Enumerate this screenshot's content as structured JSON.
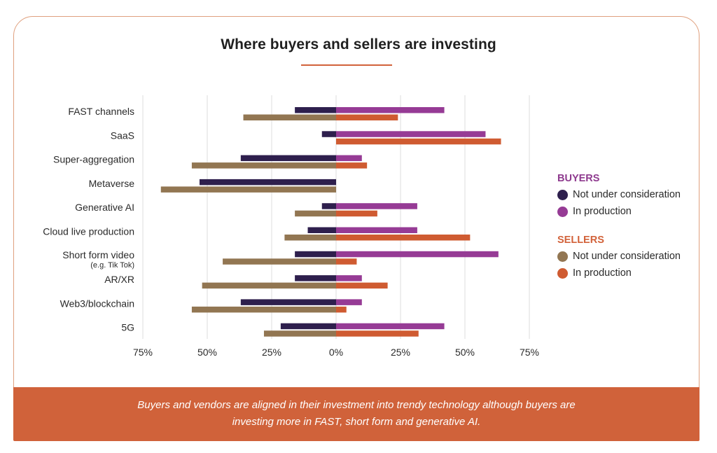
{
  "title": "Where buyers and sellers are investing",
  "legend": {
    "buyers_heading": "BUYERS",
    "sellers_heading": "SELLERS",
    "buyers_not": "Not under consideration",
    "buyers_in": "In production",
    "sellers_not": "Not under consideration",
    "sellers_in": "In production"
  },
  "footer": {
    "line1": "Buyers and vendors are aligned in their investment into trendy technology although buyers are",
    "line2": "investing more in FAST, short form and generative AI."
  },
  "colors": {
    "buyers_not": "#2e1f4d",
    "buyers_in": "#963b95",
    "sellers_not": "#927652",
    "sellers_in": "#cf5b31",
    "grid": "#dcdcdc",
    "accent": "#d2623a"
  },
  "chart_data": {
    "type": "bar",
    "orientation": "horizontal-diverging",
    "title": "Where buyers and sellers are investing",
    "categories": [
      "FAST channels",
      "SaaS",
      "Super-aggregation",
      "Metaverse",
      "Generative AI",
      "Cloud live production",
      "Short form video",
      "AR/XR",
      "Web3/blockchain",
      "5G"
    ],
    "category_notes": [
      "",
      "",
      "",
      "",
      "",
      "",
      "(e.g. Tik Tok)",
      "",
      "",
      ""
    ],
    "xticks": [
      "75%",
      "50%",
      "25%",
      "0%",
      "25%",
      "50%",
      "75%"
    ],
    "xtick_values": [
      -75,
      -50,
      -25,
      0,
      25,
      50,
      75
    ],
    "xlim": [
      -75,
      75
    ],
    "grid": true,
    "legend_position": "right",
    "series": [
      {
        "name": "BUYERS Not under consideration",
        "values": [
          -16,
          -5.5,
          -37,
          -53,
          -5.5,
          -11,
          -16,
          -16,
          -37,
          -21.5
        ]
      },
      {
        "name": "BUYERS In production",
        "values": [
          42,
          58,
          10,
          0,
          31.5,
          31.5,
          63,
          10,
          10,
          42
        ]
      },
      {
        "name": "SELLERS Not under consideration",
        "values": [
          -36,
          0,
          -56,
          -68,
          -16,
          -20,
          -44,
          -52,
          -56,
          -28
        ]
      },
      {
        "name": "SELLERS In production",
        "values": [
          24,
          64,
          12,
          0,
          16,
          52,
          8,
          20,
          4,
          32
        ]
      }
    ]
  }
}
